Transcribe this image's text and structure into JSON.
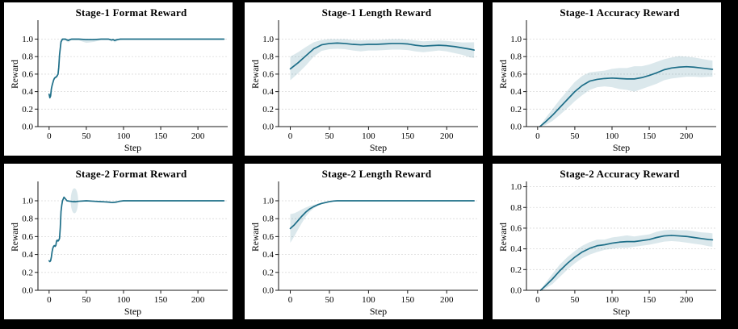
{
  "figure": {
    "background": "#000000",
    "panel_background": "#ffffff"
  },
  "style": {
    "line_color": "#1d6e88",
    "band_opacity": 0.16,
    "grid_color": "#d9d9d9",
    "spine_color": "#1a1a1a",
    "text_color": "#000000"
  },
  "chart_data": [
    {
      "type": "line",
      "title": "Stage-1 Format Reward",
      "xlabel": "Step",
      "ylabel": "Reward",
      "xlim": [
        -15,
        240
      ],
      "ylim": [
        0,
        1.18
      ],
      "xticks": [
        0,
        50,
        100,
        150,
        200
      ],
      "yticks": [
        0.0,
        0.2,
        0.4,
        0.6,
        0.8,
        1.0
      ],
      "grid": "horizontal-dashed",
      "legend": "none",
      "x": [
        0,
        1,
        2,
        3,
        4,
        5,
        6,
        7,
        8,
        10,
        12,
        13,
        14,
        16,
        18,
        22,
        24,
        26,
        28,
        30,
        40,
        50,
        60,
        70,
        80,
        84,
        86,
        88,
        90,
        92,
        95,
        100,
        120,
        150,
        180,
        210,
        235
      ],
      "y": [
        0.37,
        0.33,
        0.35,
        0.43,
        0.47,
        0.5,
        0.53,
        0.55,
        0.56,
        0.57,
        0.6,
        0.68,
        0.82,
        0.97,
        1.0,
        1.0,
        0.99,
        0.985,
        0.995,
        1.0,
        1.0,
        0.995,
        0.995,
        1.0,
        1.0,
        0.99,
        0.995,
        0.985,
        0.99,
        0.995,
        1.0,
        1.0,
        1.0,
        1.0,
        1.0,
        1.0,
        1.0
      ],
      "band_lo": [
        0.355,
        0.315,
        0.335,
        0.415,
        0.455,
        0.485,
        0.515,
        0.535,
        0.545,
        0.555,
        0.58,
        0.64,
        0.76,
        0.92,
        0.985,
        0.985,
        0.97,
        0.962,
        0.975,
        0.985,
        0.985,
        0.958,
        0.968,
        0.99,
        0.99,
        0.972,
        0.98,
        0.962,
        0.972,
        0.98,
        0.988,
        0.992,
        0.992,
        0.992,
        0.992,
        0.992,
        0.992
      ],
      "band_hi": [
        0.385,
        0.345,
        0.365,
        0.445,
        0.485,
        0.515,
        0.545,
        0.565,
        0.575,
        0.585,
        0.62,
        0.72,
        0.88,
        1.0,
        1.005,
        1.005,
        1.0,
        1.0,
        1.005,
        1.005,
        1.005,
        1.005,
        1.005,
        1.005,
        1.005,
        1.0,
        1.005,
        1.0,
        1.0,
        1.005,
        1.005,
        1.005,
        1.005,
        1.005,
        1.005,
        1.005,
        1.005
      ]
    },
    {
      "type": "line",
      "title": "Stage-1 Length Reward",
      "xlabel": "Step",
      "ylabel": "Reward",
      "xlim": [
        -15,
        240
      ],
      "ylim": [
        0,
        1.18
      ],
      "xticks": [
        0,
        50,
        100,
        150,
        200
      ],
      "yticks": [
        0.0,
        0.2,
        0.4,
        0.6,
        0.8,
        1.0
      ],
      "grid": "horizontal-dashed",
      "legend": "none",
      "x": [
        0,
        10,
        20,
        30,
        40,
        50,
        60,
        70,
        80,
        90,
        100,
        110,
        120,
        130,
        140,
        150,
        160,
        170,
        180,
        190,
        200,
        210,
        220,
        230,
        235
      ],
      "y": [
        0.66,
        0.73,
        0.81,
        0.89,
        0.935,
        0.95,
        0.955,
        0.95,
        0.94,
        0.935,
        0.94,
        0.94,
        0.945,
        0.95,
        0.95,
        0.945,
        0.93,
        0.92,
        0.925,
        0.93,
        0.925,
        0.915,
        0.9,
        0.885,
        0.875
      ],
      "band_lo": [
        0.53,
        0.61,
        0.7,
        0.8,
        0.865,
        0.885,
        0.89,
        0.885,
        0.87,
        0.86,
        0.87,
        0.87,
        0.875,
        0.88,
        0.88,
        0.875,
        0.86,
        0.85,
        0.86,
        0.87,
        0.86,
        0.84,
        0.82,
        0.79,
        0.785
      ],
      "band_hi": [
        0.8,
        0.85,
        0.91,
        0.965,
        0.99,
        1.0,
        1.0,
        1.0,
        0.99,
        0.985,
        0.99,
        0.99,
        0.995,
        1.0,
        1.0,
        0.995,
        0.985,
        0.975,
        0.98,
        0.985,
        0.98,
        0.97,
        0.962,
        0.963,
        0.965
      ]
    },
    {
      "type": "line",
      "title": "Stage-1 Accuracy Reward",
      "xlabel": "Step",
      "ylabel": "Reward",
      "xlim": [
        -15,
        240
      ],
      "ylim": [
        0,
        1.18
      ],
      "xticks": [
        0,
        50,
        100,
        150,
        200
      ],
      "yticks": [
        0.0,
        0.2,
        0.4,
        0.6,
        0.8,
        1.0
      ],
      "grid": "horizontal-dashed",
      "legend": "none",
      "x": [
        3,
        10,
        20,
        30,
        40,
        50,
        60,
        70,
        80,
        90,
        100,
        110,
        120,
        130,
        140,
        150,
        160,
        170,
        180,
        190,
        200,
        210,
        220,
        230,
        235
      ],
      "y": [
        0.0,
        0.05,
        0.13,
        0.22,
        0.31,
        0.4,
        0.47,
        0.52,
        0.54,
        0.55,
        0.555,
        0.55,
        0.545,
        0.545,
        0.56,
        0.585,
        0.615,
        0.65,
        0.67,
        0.68,
        0.685,
        0.68,
        0.67,
        0.66,
        0.655
      ],
      "band_lo": [
        0.0,
        0.015,
        0.065,
        0.135,
        0.21,
        0.29,
        0.36,
        0.42,
        0.45,
        0.46,
        0.45,
        0.43,
        0.42,
        0.4,
        0.43,
        0.46,
        0.49,
        0.53,
        0.55,
        0.56,
        0.57,
        0.57,
        0.565,
        0.57,
        0.57
      ],
      "band_hi": [
        0.0,
        0.09,
        0.2,
        0.31,
        0.41,
        0.51,
        0.58,
        0.62,
        0.63,
        0.64,
        0.66,
        0.67,
        0.67,
        0.69,
        0.69,
        0.71,
        0.74,
        0.77,
        0.79,
        0.805,
        0.8,
        0.79,
        0.775,
        0.76,
        0.755
      ]
    },
    {
      "type": "line",
      "title": "Stage-2 Format Reward",
      "xlabel": "Step",
      "ylabel": "Reward",
      "xlim": [
        -15,
        240
      ],
      "ylim": [
        0,
        1.18
      ],
      "xticks": [
        0,
        50,
        100,
        150,
        200
      ],
      "yticks": [
        0.0,
        0.2,
        0.4,
        0.6,
        0.8,
        1.0
      ],
      "grid": "horizontal-dashed",
      "legend": "none",
      "x": [
        0,
        1,
        2,
        3,
        4,
        5,
        6,
        7,
        8,
        9,
        10,
        11,
        12,
        13,
        14,
        15,
        16,
        17,
        18,
        20,
        22,
        24,
        28,
        32,
        36,
        40,
        50,
        60,
        70,
        80,
        85,
        90,
        95,
        100,
        120,
        160,
        235
      ],
      "y": [
        0.33,
        0.32,
        0.33,
        0.37,
        0.43,
        0.47,
        0.49,
        0.5,
        0.49,
        0.5,
        0.55,
        0.56,
        0.55,
        0.56,
        0.58,
        0.7,
        0.88,
        0.95,
        1.0,
        1.04,
        1.02,
        1.0,
        0.995,
        0.99,
        0.99,
        0.995,
        1.0,
        0.995,
        0.99,
        0.985,
        0.98,
        0.985,
        0.995,
        1.0,
        1.0,
        1.0,
        1.0
      ],
      "ellipse": {
        "cx": 34,
        "cy": 1.0,
        "rx": 5,
        "ry": 0.14
      }
    },
    {
      "type": "line",
      "title": "Stage-2 Length Reward",
      "xlabel": "Step",
      "ylabel": "Reward",
      "xlim": [
        -15,
        240
      ],
      "ylim": [
        0,
        1.18
      ],
      "xticks": [
        0,
        50,
        100,
        150,
        200
      ],
      "yticks": [
        0.0,
        0.2,
        0.4,
        0.6,
        0.8,
        1.0
      ],
      "grid": "horizontal-dashed",
      "legend": "none",
      "x": [
        0,
        5,
        10,
        15,
        20,
        25,
        30,
        35,
        40,
        45,
        50,
        55,
        60,
        80,
        100,
        150,
        200,
        235
      ],
      "y": [
        0.69,
        0.73,
        0.78,
        0.83,
        0.875,
        0.91,
        0.935,
        0.955,
        0.97,
        0.98,
        0.99,
        0.997,
        1.0,
        1.0,
        1.0,
        1.0,
        1.0,
        1.0
      ],
      "band_lo": [
        0.53,
        0.6,
        0.68,
        0.755,
        0.825,
        0.878,
        0.915,
        0.943,
        0.962,
        0.975,
        0.987,
        0.995,
        1.0,
        1.0,
        1.0,
        1.0,
        1.0,
        1.0
      ],
      "band_hi": [
        0.85,
        0.86,
        0.88,
        0.905,
        0.925,
        0.942,
        0.955,
        0.967,
        0.978,
        0.985,
        0.993,
        0.999,
        1.0,
        1.0,
        1.0,
        1.0,
        1.0,
        1.0
      ]
    },
    {
      "type": "line",
      "title": "Stage-2 Accuracy Reward",
      "xlabel": "Step",
      "ylabel": "Reward",
      "xlim": [
        -15,
        240
      ],
      "ylim": [
        0,
        1.02
      ],
      "xticks": [
        0,
        50,
        100,
        150,
        200
      ],
      "yticks": [
        0.0,
        0.2,
        0.4,
        0.6,
        0.8,
        1.0
      ],
      "grid": "horizontal-dashed",
      "legend": "none",
      "x": [
        4,
        10,
        20,
        30,
        40,
        50,
        60,
        70,
        80,
        90,
        100,
        110,
        120,
        130,
        140,
        150,
        160,
        170,
        180,
        190,
        200,
        210,
        220,
        230,
        235
      ],
      "y": [
        0.0,
        0.04,
        0.11,
        0.19,
        0.26,
        0.32,
        0.37,
        0.405,
        0.43,
        0.44,
        0.455,
        0.465,
        0.47,
        0.47,
        0.48,
        0.49,
        0.51,
        0.525,
        0.53,
        0.525,
        0.52,
        0.51,
        0.5,
        0.49,
        0.487
      ],
      "band_lo": [
        0.0,
        0.015,
        0.06,
        0.13,
        0.2,
        0.26,
        0.31,
        0.345,
        0.37,
        0.39,
        0.4,
        0.41,
        0.41,
        0.42,
        0.43,
        0.44,
        0.455,
        0.47,
        0.475,
        0.47,
        0.46,
        0.45,
        0.44,
        0.425,
        0.42
      ],
      "band_hi": [
        0.0,
        0.065,
        0.16,
        0.25,
        0.32,
        0.38,
        0.43,
        0.465,
        0.49,
        0.49,
        0.51,
        0.52,
        0.53,
        0.52,
        0.53,
        0.54,
        0.565,
        0.58,
        0.585,
        0.58,
        0.58,
        0.57,
        0.56,
        0.555,
        0.55
      ]
    }
  ]
}
